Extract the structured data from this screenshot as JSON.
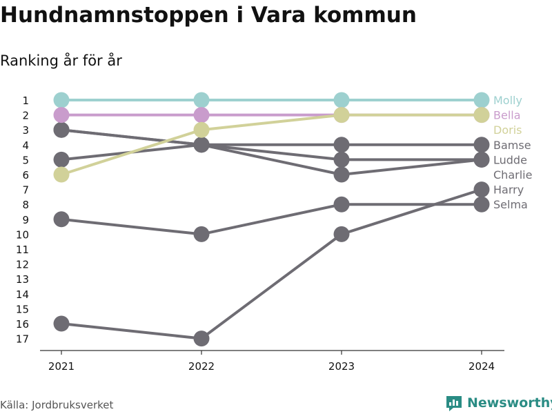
{
  "title": "Hundnamnstoppen i Vara kommun",
  "subtitle": "Ranking år för år",
  "source": "Källa: Jordbruksverket",
  "brand": "Newsworthy",
  "colors": {
    "Molly": "#9dd0cf",
    "Bella": "#c99ccc",
    "Doris": "#d1d199",
    "other": "#6e6c73",
    "brand": "#2a8c84"
  },
  "chart_data": {
    "type": "line",
    "title": "Hundnamnstoppen i Vara kommun",
    "subtitle": "Ranking år för år",
    "x": [
      "2021",
      "2022",
      "2023",
      "2024"
    ],
    "y_ticks": [
      1,
      2,
      3,
      4,
      5,
      6,
      7,
      8,
      9,
      10,
      11,
      12,
      13,
      14,
      15,
      16,
      17
    ],
    "ylim": [
      17,
      1
    ],
    "y_reversed": true,
    "grid": false,
    "series": [
      {
        "name": "Molly",
        "values": [
          1,
          1,
          1,
          1
        ]
      },
      {
        "name": "Bella",
        "values": [
          2,
          2,
          2,
          2
        ]
      },
      {
        "name": "Doris",
        "values": [
          6,
          3,
          2,
          2
        ]
      },
      {
        "name": "Bamse",
        "values": [
          5,
          4,
          4,
          4
        ]
      },
      {
        "name": "Ludde",
        "values": [
          3,
          4,
          5,
          5
        ]
      },
      {
        "name": "Charlie",
        "values": [
          3,
          4,
          6,
          5
        ]
      },
      {
        "name": "Harry",
        "values": [
          16,
          17,
          10,
          7
        ]
      },
      {
        "name": "Selma",
        "values": [
          9,
          10,
          8,
          8
        ]
      }
    ],
    "end_labels": [
      "Molly",
      "Bella",
      "Doris",
      "Bamse",
      "Ludde",
      "Charlie",
      "Harry",
      "Selma"
    ]
  }
}
